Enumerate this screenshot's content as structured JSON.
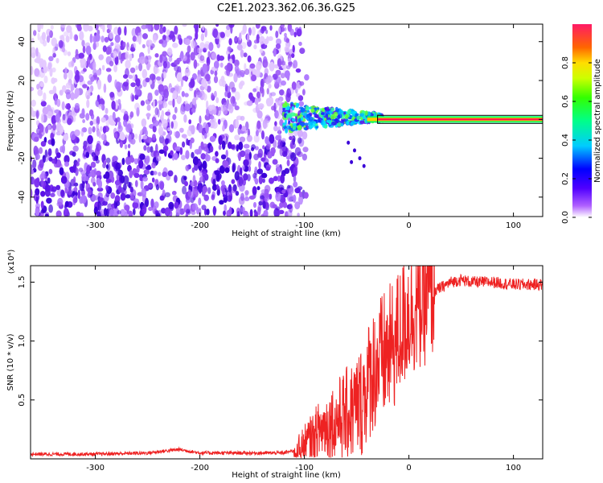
{
  "title": "C2E1.2023.362.06.36.G25",
  "colors": {
    "spectrum_lo": "#8a2be2",
    "spectrum_hi": "#3a00d8",
    "snr_line": "#ee2222",
    "signal_core": "#ff1a4d"
  },
  "chart_data": [
    {
      "type": "heatmap",
      "xlabel": "Height of straight line (km)",
      "ylabel": "Frequency (Hz)",
      "xlim": [
        -362,
        128
      ],
      "ylim": [
        -50,
        49
      ],
      "xticks": [
        -300,
        -200,
        -100,
        0,
        100
      ],
      "xtick_labels": [
        "-300",
        "-200",
        "-100",
        "0",
        "100"
      ],
      "yticks": [
        -40,
        -20,
        0,
        20,
        40
      ],
      "ytick_labels": [
        "-40",
        "-20",
        "0",
        "20",
        "40"
      ],
      "grid": false,
      "colorbar": {
        "label": "Normalized spectral amplitude",
        "range": [
          0,
          1
        ],
        "ticks": [
          0.0,
          0.2,
          0.4,
          0.6,
          0.8
        ],
        "tick_labels": [
          "0.0",
          "0.2",
          "0.4",
          "0.6",
          "0.8"
        ],
        "colormap": "rainbow (violet to red)"
      },
      "features": {
        "noise_region_x": [
          -362,
          -103
        ],
        "signal_band_x": [
          -120,
          128
        ],
        "signal_band_center_hz": 0,
        "signal_band_core_amplitude": 1.0
      }
    },
    {
      "type": "line",
      "xlabel": "Height of straight line (km)",
      "ylabel": "SNR (10 * v/v)",
      "y_multiplier": "(x10⁴)",
      "xlim": [
        -362,
        128
      ],
      "ylim": [
        0.0,
        1.64
      ],
      "xticks": [
        -300,
        -200,
        -100,
        0,
        100
      ],
      "xtick_labels": [
        "-300",
        "-200",
        "-100",
        "0",
        "100"
      ],
      "yticks": [
        0.5,
        1.0,
        1.5
      ],
      "ytick_labels": [
        "0.5",
        "1.0",
        "1.5"
      ],
      "grid": false,
      "series": [
        {
          "x": [
            -362,
            -300,
            -250,
            -220,
            -200,
            -150,
            -120,
            -105,
            -95,
            -85,
            -75,
            -65,
            -55,
            -45,
            -35,
            -25,
            -15,
            -5,
            0,
            10,
            20,
            30,
            40,
            50,
            60,
            80,
            100,
            128
          ],
          "y": [
            0.04,
            0.04,
            0.05,
            0.08,
            0.05,
            0.05,
            0.05,
            0.08,
            0.15,
            0.25,
            0.3,
            0.35,
            0.4,
            0.5,
            0.75,
            0.85,
            0.95,
            1.15,
            1.25,
            1.3,
            1.4,
            1.45,
            1.5,
            1.52,
            1.5,
            1.5,
            1.48,
            1.48
          ]
        }
      ]
    }
  ]
}
